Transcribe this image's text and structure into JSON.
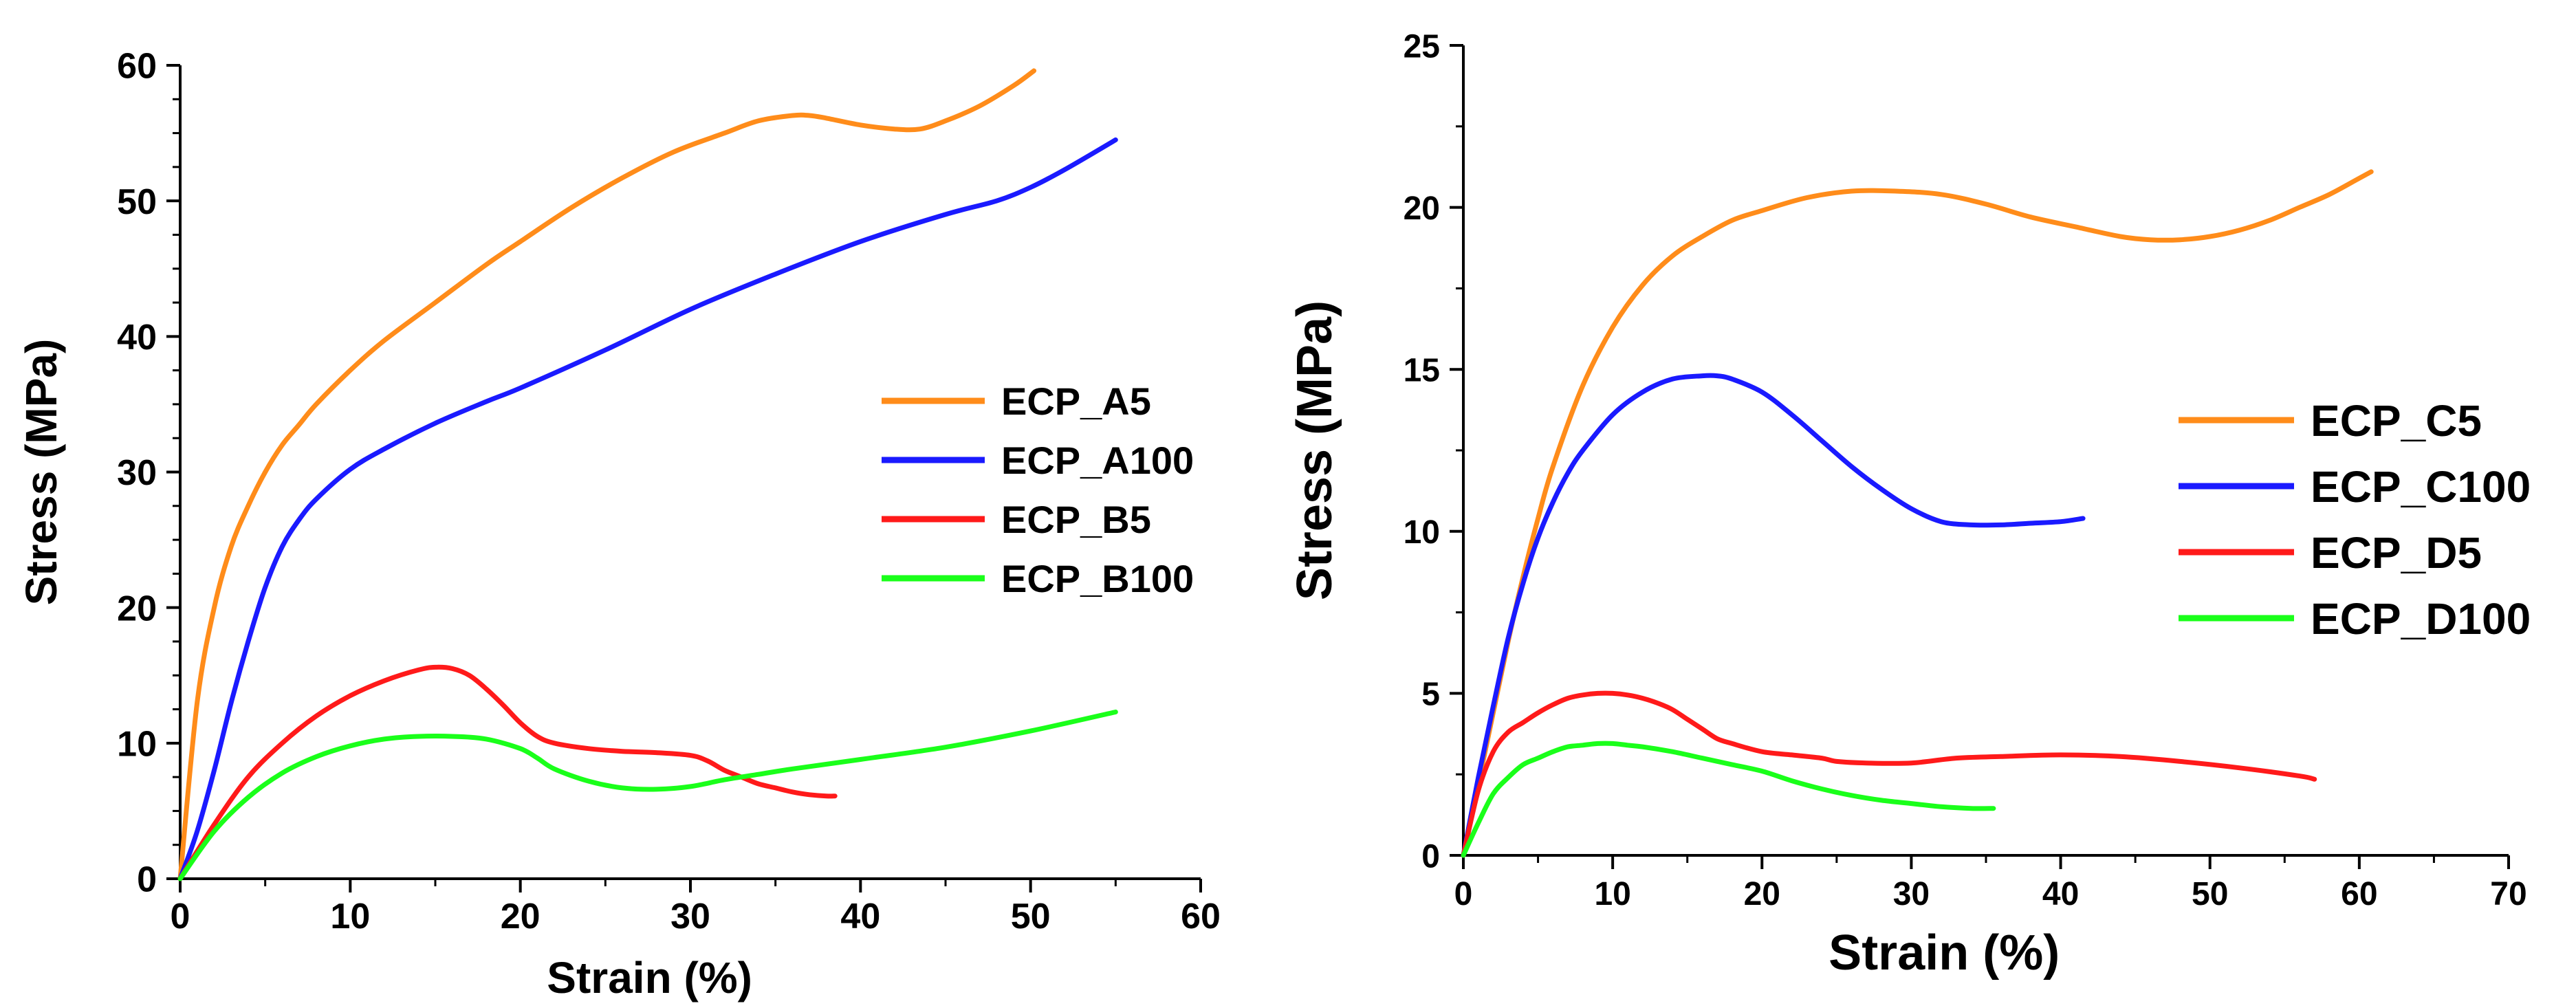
{
  "chart_data": [
    {
      "type": "line",
      "title": "",
      "xlabel": "Strain (%)",
      "ylabel": "Stress (MPa)",
      "xlim": [
        0,
        60
      ],
      "ylim": [
        0,
        60
      ],
      "xticks": [
        0,
        10,
        20,
        30,
        40,
        50,
        60
      ],
      "yticks": [
        0,
        10,
        20,
        30,
        40,
        50,
        60
      ],
      "grid": false,
      "legend_position": "center-right",
      "series": [
        {
          "name": "ECP_A5",
          "color": "#ff8c1a",
          "x": [
            0,
            1,
            2,
            3,
            4,
            5,
            6,
            7,
            8,
            10,
            12,
            15,
            18,
            20,
            23,
            26,
            29,
            32,
            34,
            36,
            37,
            38,
            40,
            42,
            43.5,
            45,
            47,
            49,
            50.2
          ],
          "y": [
            0,
            13,
            20,
            24.5,
            27.5,
            30,
            32,
            33.5,
            35,
            37.5,
            39.7,
            42.5,
            45.3,
            47,
            49.5,
            51.7,
            53.6,
            55,
            55.9,
            56.3,
            56.3,
            56.1,
            55.6,
            55.3,
            55.3,
            55.9,
            57,
            58.5,
            59.6
          ]
        },
        {
          "name": "ECP_A100",
          "color": "#1a1aff",
          "x": [
            0,
            1,
            2,
            3,
            4,
            5,
            6,
            7,
            8,
            10,
            12,
            15,
            18,
            20,
            25,
            30,
            35,
            40,
            45,
            48,
            50,
            52,
            55
          ],
          "y": [
            0,
            3.5,
            8,
            13,
            17.5,
            21.5,
            24.5,
            26.5,
            28,
            30.2,
            31.7,
            33.6,
            35.2,
            36.2,
            39,
            42,
            44.6,
            47,
            49,
            50,
            51,
            52.3,
            54.5
          ]
        },
        {
          "name": "ECP_B5",
          "color": "#ff1a1a",
          "x": [
            0,
            2,
            4,
            6,
            8,
            10,
            12,
            14,
            15,
            16,
            17,
            18,
            19,
            20,
            21,
            22,
            24,
            26,
            28,
            30,
            31,
            32,
            33,
            34,
            35,
            36,
            37,
            38,
            38.5
          ],
          "y": [
            0,
            4,
            7.5,
            10,
            12,
            13.5,
            14.6,
            15.4,
            15.6,
            15.5,
            15,
            14,
            12.8,
            11.5,
            10.5,
            10,
            9.6,
            9.4,
            9.3,
            9.1,
            8.7,
            8,
            7.5,
            7,
            6.7,
            6.4,
            6.2,
            6.1,
            6.1
          ]
        },
        {
          "name": "ECP_B100",
          "color": "#1aff1a",
          "x": [
            0,
            2,
            4,
            6,
            8,
            10,
            12,
            14,
            16,
            18,
            20,
            21,
            22,
            24,
            26,
            28,
            30,
            32,
            34,
            36,
            40,
            45,
            50,
            55
          ],
          "y": [
            0,
            3.5,
            6,
            7.8,
            9,
            9.8,
            10.3,
            10.5,
            10.5,
            10.3,
            9.6,
            8.9,
            8.1,
            7.2,
            6.7,
            6.6,
            6.8,
            7.3,
            7.7,
            8.1,
            8.8,
            9.7,
            10.9,
            12.3
          ]
        }
      ]
    },
    {
      "type": "line",
      "title": "",
      "xlabel": "Strain (%)",
      "ylabel": "Stress (MPa)",
      "xlim": [
        0,
        70
      ],
      "ylim": [
        0,
        25
      ],
      "xticks": [
        0,
        10,
        20,
        30,
        40,
        50,
        60,
        70
      ],
      "yticks": [
        0,
        5,
        10,
        15,
        20,
        25
      ],
      "grid": false,
      "legend_position": "center-right",
      "series": [
        {
          "name": "ECP_C5",
          "color": "#ff8c1a",
          "x": [
            0,
            1,
            2,
            3,
            4,
            5,
            6,
            8,
            10,
            12,
            14,
            16,
            18,
            20,
            23,
            26,
            29,
            32,
            35,
            38,
            41,
            44,
            46,
            48,
            50,
            52,
            54,
            56,
            58,
            60,
            60.8
          ],
          "y": [
            0,
            2.2,
            4.4,
            6.6,
            8.6,
            10.4,
            12,
            14.5,
            16.3,
            17.6,
            18.5,
            19.1,
            19.6,
            19.9,
            20.3,
            20.5,
            20.5,
            20.4,
            20.1,
            19.7,
            19.4,
            19.1,
            19,
            19,
            19.1,
            19.3,
            19.6,
            20,
            20.4,
            20.9,
            21.1
          ]
        },
        {
          "name": "ECP_C100",
          "color": "#1a1aff",
          "x": [
            0,
            1,
            2,
            3,
            4,
            5,
            6,
            7,
            8,
            10,
            12,
            14,
            16,
            17,
            18,
            20,
            22,
            24,
            26,
            28,
            30,
            32,
            34,
            36,
            38,
            40,
            41.5
          ],
          "y": [
            0,
            2.4,
            4.6,
            6.7,
            8.4,
            9.8,
            10.9,
            11.8,
            12.5,
            13.6,
            14.3,
            14.7,
            14.8,
            14.8,
            14.7,
            14.3,
            13.6,
            12.8,
            12,
            11.3,
            10.7,
            10.3,
            10.2,
            10.2,
            10.25,
            10.3,
            10.4
          ]
        },
        {
          "name": "ECP_D5",
          "color": "#ff1a1a",
          "x": [
            0,
            1,
            2,
            3,
            4,
            5,
            6,
            7,
            8,
            9,
            10,
            11,
            12,
            13,
            14,
            15,
            16,
            17,
            18,
            20,
            22,
            24,
            25,
            27,
            30,
            33,
            36,
            40,
            44,
            48,
            52,
            56,
            57
          ],
          "y": [
            0,
            2,
            3.2,
            3.8,
            4.1,
            4.4,
            4.65,
            4.85,
            4.95,
            5,
            5,
            4.95,
            4.85,
            4.7,
            4.5,
            4.2,
            3.9,
            3.6,
            3.45,
            3.2,
            3.1,
            3,
            2.9,
            2.85,
            2.85,
            3,
            3.05,
            3.1,
            3.05,
            2.9,
            2.7,
            2.45,
            2.35
          ]
        },
        {
          "name": "ECP_D100",
          "color": "#1aff1a",
          "x": [
            0,
            1,
            2,
            3,
            4,
            5,
            6,
            7,
            8,
            9,
            10,
            11,
            12,
            14,
            16,
            18,
            20,
            22,
            24,
            26,
            28,
            30,
            32,
            34,
            35.5
          ],
          "y": [
            0,
            1,
            1.9,
            2.4,
            2.8,
            3,
            3.2,
            3.35,
            3.4,
            3.45,
            3.45,
            3.4,
            3.35,
            3.2,
            3,
            2.8,
            2.6,
            2.3,
            2.05,
            1.85,
            1.7,
            1.6,
            1.5,
            1.45,
            1.45
          ]
        }
      ]
    }
  ]
}
